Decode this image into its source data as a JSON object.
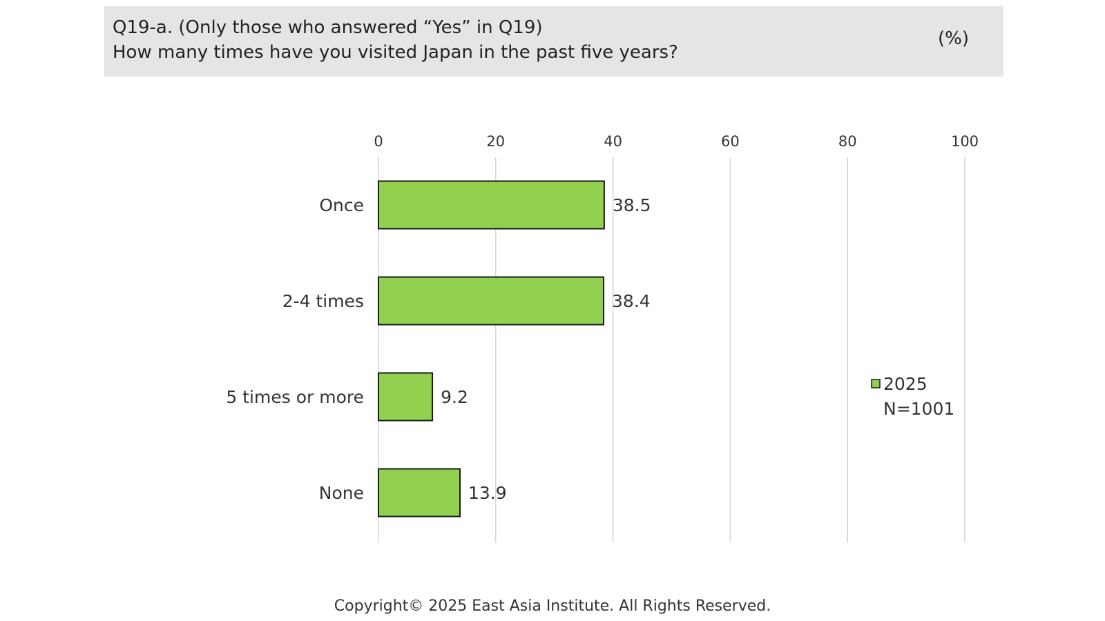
{
  "header": {
    "question_line1": "Q19-a. (Only those who answered “Yes” in Q19)",
    "question_line2": "How many times have you visited Japan in the past five years?",
    "unit": "(%)"
  },
  "chart_data": {
    "type": "bar",
    "orientation": "horizontal",
    "categories": [
      "Once",
      "2-4 times",
      "5 times or more",
      "None"
    ],
    "series": [
      {
        "name": "2025",
        "values": [
          38.5,
          38.4,
          9.2,
          13.9
        ],
        "color": "#92d050"
      }
    ],
    "xlim": [
      0,
      100
    ],
    "x_ticks": [
      0,
      20,
      40,
      60,
      80,
      100
    ],
    "grid": true,
    "legend_position": "right",
    "legend_note": "N=1001",
    "data_labels": [
      "38.5",
      "38.4",
      "9.2",
      "13.9"
    ]
  },
  "footer": {
    "copyright": "Copyright© 2025 East Asia Institute. All Rights Reserved."
  }
}
